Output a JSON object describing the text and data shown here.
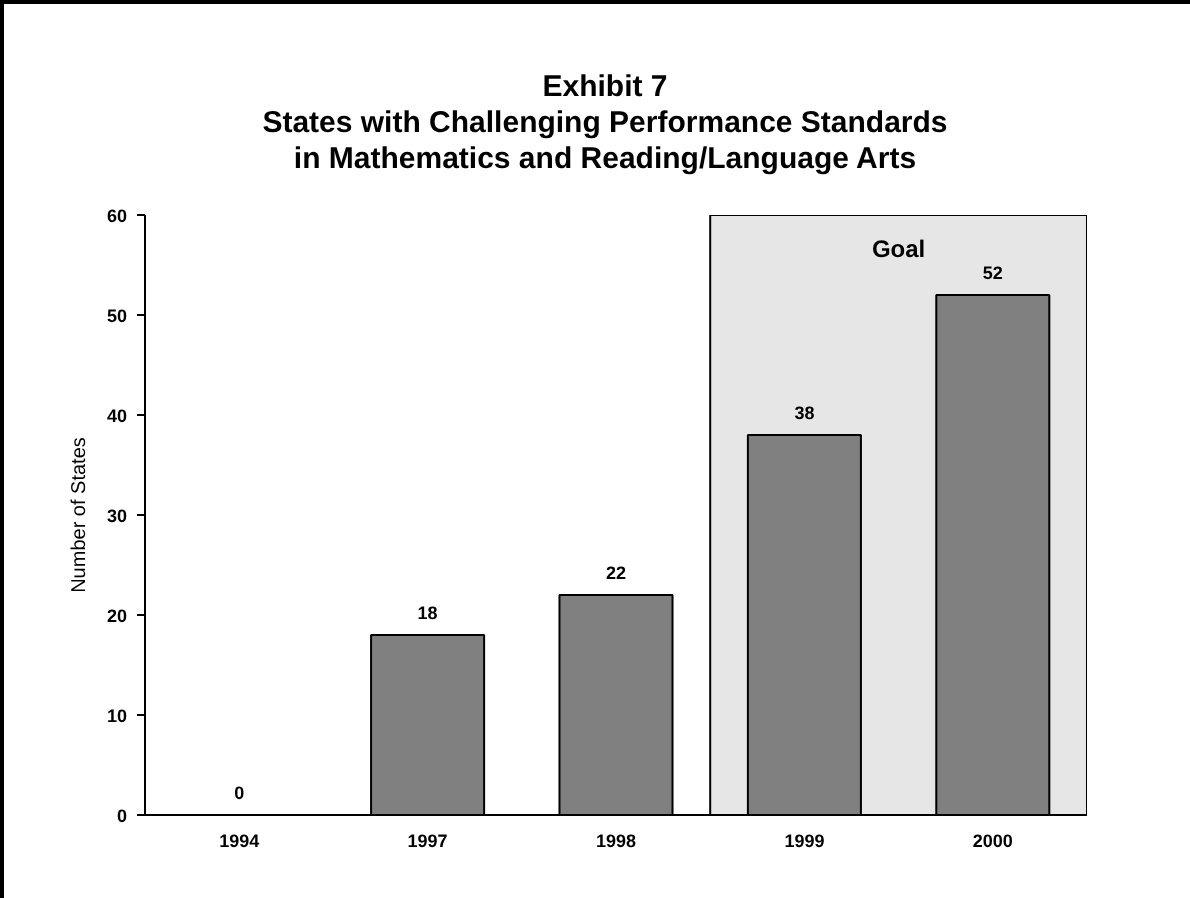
{
  "chart_data": {
    "type": "bar",
    "title": "Exhibit 7\nStates with Challenging Performance Standards\nin Mathematics and Reading/Language Arts",
    "ylabel": "Number of States",
    "categories": [
      "1994",
      "1997",
      "1998",
      "1999",
      "2000"
    ],
    "values": [
      0,
      18,
      22,
      38,
      52
    ],
    "color": "#808080",
    "ylim": [
      0,
      60
    ],
    "yticks": [
      0,
      10,
      20,
      30,
      40,
      50,
      60
    ],
    "data_labels": true,
    "bands": [
      {
        "axis": "x",
        "from": "1999",
        "to": "2000",
        "label": "Goal",
        "color": "#e6e6e6"
      }
    ]
  }
}
